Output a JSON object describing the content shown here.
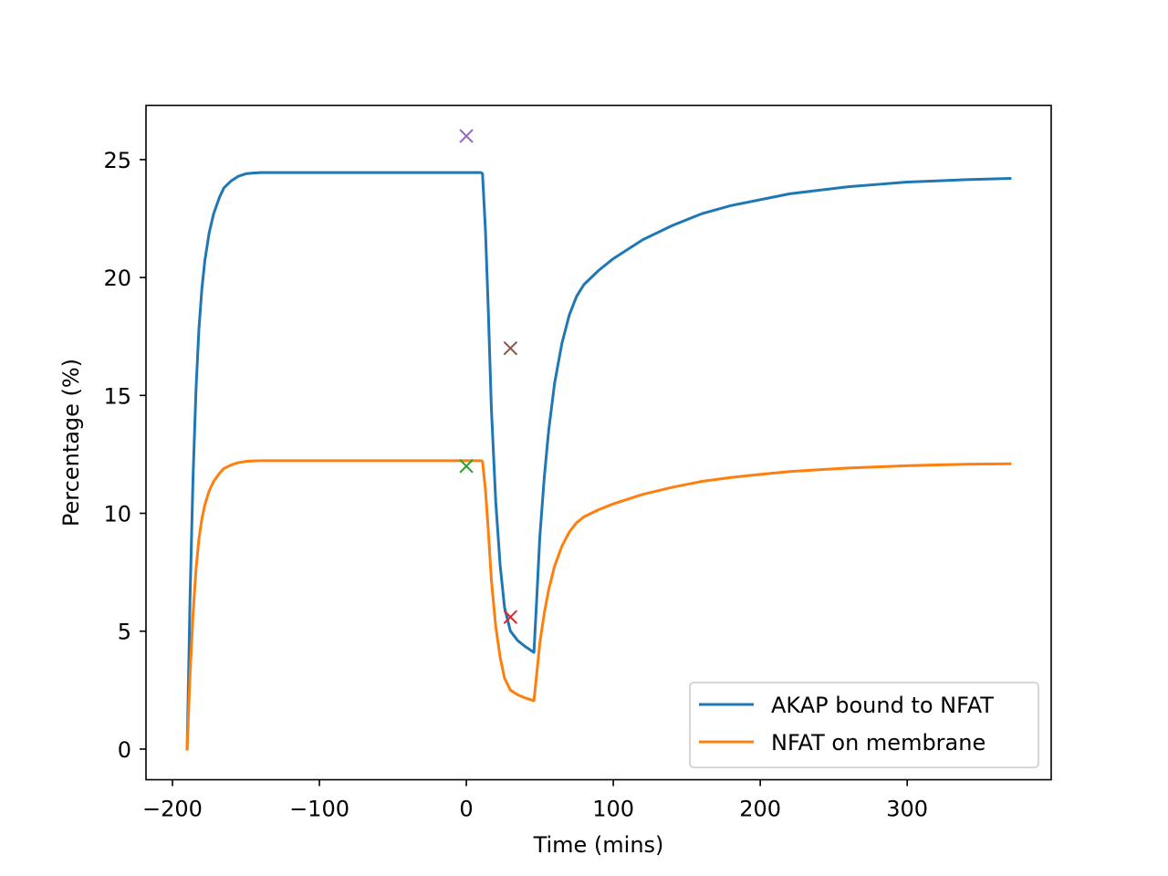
{
  "chart_data": {
    "type": "line",
    "title": "",
    "xlabel": "Time (mins)",
    "ylabel": "Percentage (%)",
    "xlim": [
      -218,
      398
    ],
    "ylim": [
      -1.3,
      27.3
    ],
    "xticks": [
      -200,
      -100,
      0,
      100,
      200,
      300
    ],
    "xtick_labels": [
      "−200",
      "−100",
      "0",
      "100",
      "200",
      "300"
    ],
    "yticks": [
      0,
      5,
      10,
      15,
      20,
      25
    ],
    "ytick_labels": [
      "0",
      "5",
      "10",
      "15",
      "20",
      "25"
    ],
    "grid": false,
    "legend_position": "lower-right",
    "series": [
      {
        "name": "AKAP bound to NFAT",
        "color": "#1f77b4",
        "x": [
          -190,
          -188,
          -186,
          -184,
          -182,
          -180,
          -178,
          -175,
          -172,
          -168,
          -165,
          -160,
          -155,
          -150,
          -145,
          -140,
          -130,
          -120,
          -100,
          -50,
          0,
          10,
          11,
          13,
          15,
          17,
          20,
          23,
          26,
          30,
          35,
          40,
          46,
          48,
          50,
          53,
          56,
          60,
          65,
          70,
          75,
          80,
          90,
          100,
          120,
          140,
          160,
          180,
          200,
          220,
          240,
          260,
          280,
          300,
          320,
          340,
          370
        ],
        "y": [
          0,
          6.5,
          11.5,
          15.2,
          17.8,
          19.5,
          20.7,
          21.9,
          22.7,
          23.4,
          23.8,
          24.1,
          24.3,
          24.4,
          24.43,
          24.45,
          24.45,
          24.45,
          24.45,
          24.45,
          24.45,
          24.45,
          24.4,
          22.0,
          18.5,
          14.5,
          10.5,
          7.8,
          6.0,
          5.0,
          4.6,
          4.35,
          4.1,
          6.5,
          9.0,
          11.5,
          13.5,
          15.5,
          17.2,
          18.4,
          19.2,
          19.7,
          20.3,
          20.8,
          21.6,
          22.2,
          22.7,
          23.05,
          23.3,
          23.55,
          23.7,
          23.85,
          23.95,
          24.05,
          24.1,
          24.15,
          24.2
        ]
      },
      {
        "name": "NFAT on membrane",
        "color": "#ff7f0e",
        "x": [
          -190,
          -188,
          -186,
          -184,
          -182,
          -180,
          -178,
          -175,
          -172,
          -168,
          -165,
          -160,
          -155,
          -150,
          -145,
          -140,
          -130,
          -120,
          -100,
          -50,
          0,
          10,
          11,
          13,
          15,
          17,
          20,
          23,
          26,
          30,
          35,
          40,
          46,
          48,
          50,
          53,
          56,
          60,
          65,
          70,
          75,
          80,
          90,
          100,
          120,
          140,
          160,
          180,
          200,
          220,
          240,
          260,
          280,
          300,
          320,
          340,
          370
        ],
        "y": [
          0,
          3.2,
          5.7,
          7.6,
          8.9,
          9.75,
          10.35,
          10.95,
          11.35,
          11.7,
          11.9,
          12.05,
          12.15,
          12.2,
          12.22,
          12.23,
          12.23,
          12.23,
          12.23,
          12.23,
          12.23,
          12.23,
          12.2,
          11.0,
          9.2,
          7.2,
          5.2,
          3.9,
          3.0,
          2.5,
          2.3,
          2.17,
          2.05,
          3.25,
          4.5,
          5.75,
          6.75,
          7.75,
          8.6,
          9.2,
          9.6,
          9.85,
          10.15,
          10.4,
          10.8,
          11.1,
          11.35,
          11.52,
          11.65,
          11.77,
          11.85,
          11.92,
          11.97,
          12.02,
          12.05,
          12.08,
          12.1
        ]
      }
    ],
    "markers": [
      {
        "x": 0,
        "y": 26.0,
        "color": "#9467bd",
        "symbol": "x"
      },
      {
        "x": 30,
        "y": 17.0,
        "color": "#8c564b",
        "symbol": "x"
      },
      {
        "x": 0,
        "y": 12.0,
        "color": "#2ca02c",
        "symbol": "x"
      },
      {
        "x": 30,
        "y": 5.6,
        "color": "#d62728",
        "symbol": "x"
      }
    ]
  }
}
